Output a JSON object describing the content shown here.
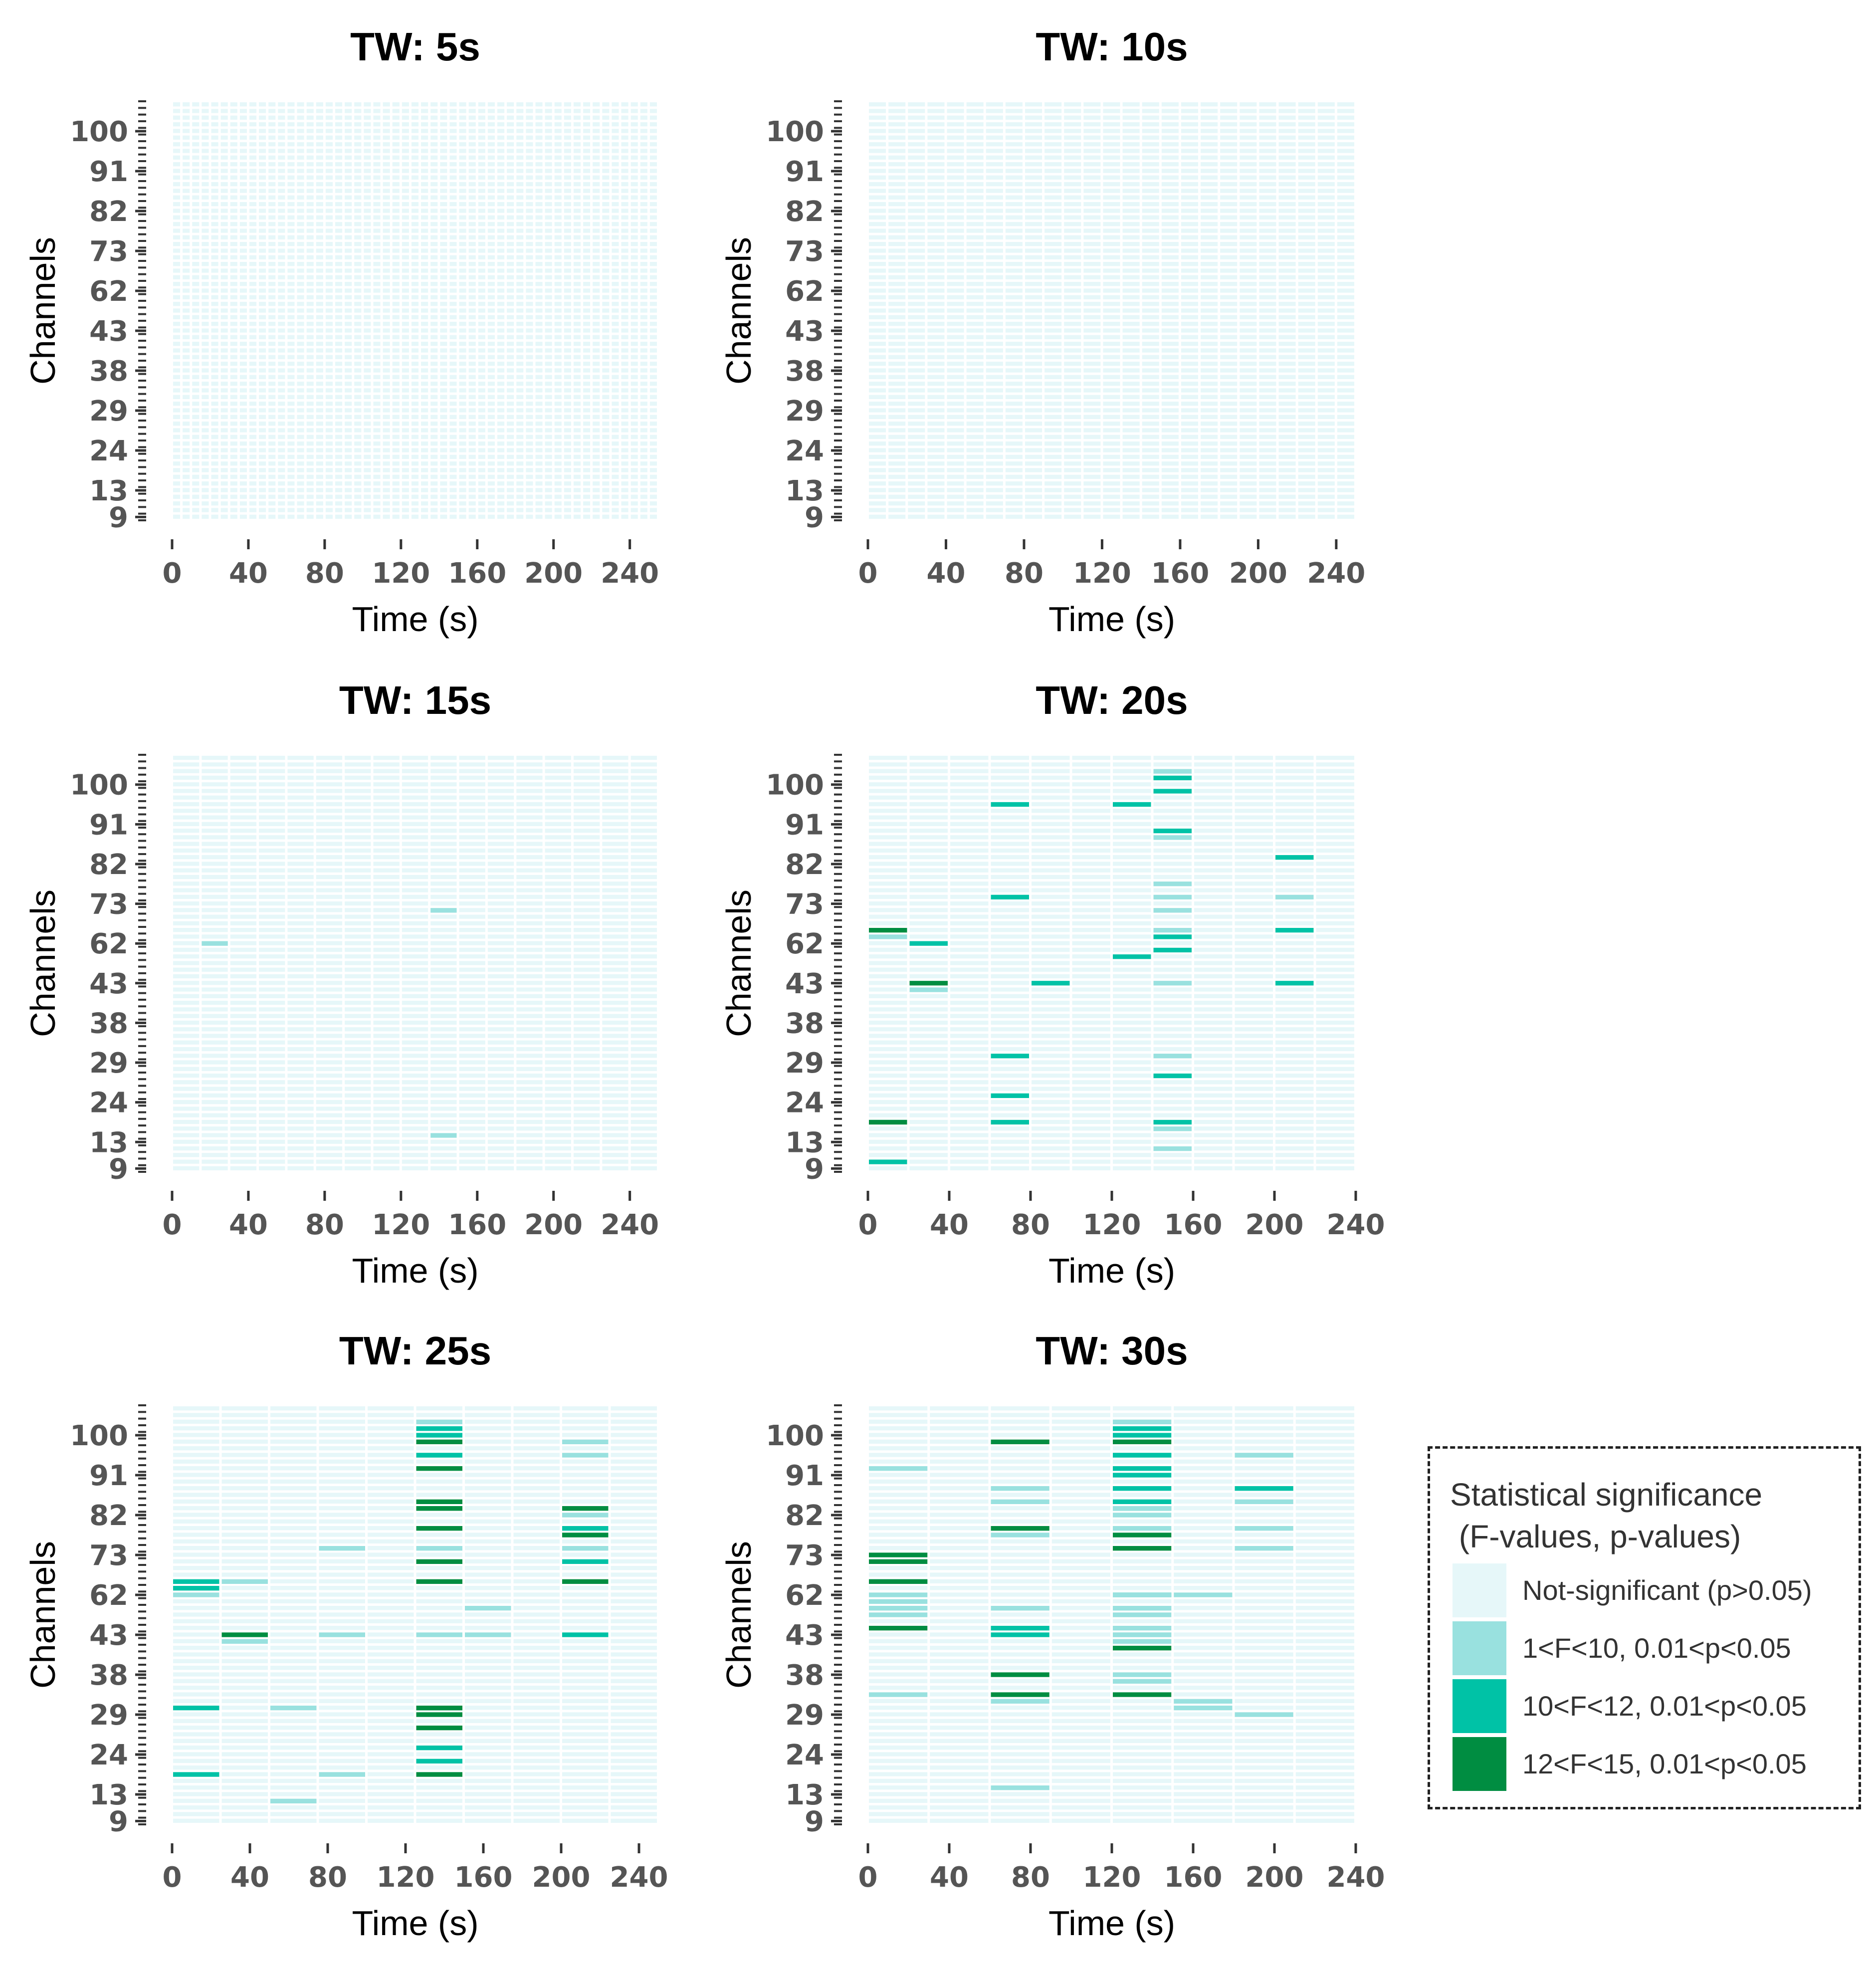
{
  "chart_data": {
    "type": "heatmap",
    "x_label": "Time (s)",
    "y_label": "Channels",
    "x_ticks": [
      0,
      40,
      80,
      120,
      160,
      200,
      240
    ],
    "y_tick_labels": [
      "9",
      "13",
      "24",
      "29",
      "38",
      "43",
      "62",
      "73",
      "82",
      "91",
      "100"
    ],
    "n_rows": 63,
    "levels": [
      "Not-significant (p>0.05)",
      "1<F<10, 0.01<p<0.05",
      "10<F<12, 0.01<p<0.05",
      "12<F<15, 0.01<p<0.05"
    ],
    "colors": [
      "#e6f7f9",
      "#99e1df",
      "#00c2a6",
      "#008d41"
    ],
    "grid_color": "#ffffff",
    "legend": {
      "title_line1": "Statistical significance",
      "title_line2": " (F-values, p-values)"
    },
    "panels": [
      {
        "title": "TW: 5s",
        "window": 5,
        "x_max": 255,
        "x_axis_max": 250,
        "cells": []
      },
      {
        "title": "TW: 10s",
        "window": 10,
        "x_max": 250,
        "x_axis_max": 250,
        "cells": []
      },
      {
        "title": "TW: 15s",
        "window": 15,
        "x_max": 255,
        "x_axis_max": 250,
        "cells": [
          {
            "t": 15,
            "ch": 62,
            "level": 1
          },
          {
            "t": 135,
            "ch": 72,
            "level": 1
          },
          {
            "t": 135,
            "ch": 15,
            "level": 1
          }
        ]
      },
      {
        "title": "TW: 20s",
        "window": 20,
        "x_max": 240,
        "x_axis_max": 240,
        "cells": [
          {
            "t": 140,
            "ch": 102,
            "level": 1
          },
          {
            "t": 140,
            "ch": 101,
            "level": 2
          },
          {
            "t": 140,
            "ch": 99,
            "level": 2
          },
          {
            "t": 60,
            "ch": 96,
            "level": 2
          },
          {
            "t": 120,
            "ch": 96,
            "level": 2
          },
          {
            "t": 140,
            "ch": 90,
            "level": 2
          },
          {
            "t": 140,
            "ch": 88,
            "level": 1
          },
          {
            "t": 200,
            "ch": 83,
            "level": 2
          },
          {
            "t": 140,
            "ch": 78,
            "level": 1
          },
          {
            "t": 60,
            "ch": 74,
            "level": 2
          },
          {
            "t": 140,
            "ch": 74,
            "level": 1
          },
          {
            "t": 200,
            "ch": 74,
            "level": 1
          },
          {
            "t": 140,
            "ch": 72,
            "level": 1
          },
          {
            "t": 0,
            "ch": 66,
            "level": 3
          },
          {
            "t": 140,
            "ch": 66,
            "level": 1
          },
          {
            "t": 200,
            "ch": 66,
            "level": 2
          },
          {
            "t": 0,
            "ch": 64,
            "level": 1
          },
          {
            "t": 140,
            "ch": 64,
            "level": 2
          },
          {
            "t": 20,
            "ch": 61,
            "level": 2
          },
          {
            "t": 140,
            "ch": 59,
            "level": 2
          },
          {
            "t": 120,
            "ch": 57,
            "level": 2
          },
          {
            "t": 20,
            "ch": 43,
            "level": 3
          },
          {
            "t": 80,
            "ch": 43,
            "level": 2
          },
          {
            "t": 140,
            "ch": 43,
            "level": 1
          },
          {
            "t": 200,
            "ch": 43,
            "level": 2
          },
          {
            "t": 20,
            "ch": 42,
            "level": 1
          },
          {
            "t": 60,
            "ch": 30,
            "level": 2
          },
          {
            "t": 140,
            "ch": 30,
            "level": 1
          },
          {
            "t": 140,
            "ch": 27,
            "level": 2
          },
          {
            "t": 60,
            "ch": 25,
            "level": 2
          },
          {
            "t": 0,
            "ch": 19,
            "level": 2
          },
          {
            "t": 0,
            "ch": 18,
            "level": 3
          },
          {
            "t": 60,
            "ch": 18,
            "level": 2
          },
          {
            "t": 140,
            "ch": 18,
            "level": 2
          },
          {
            "t": 140,
            "ch": 16,
            "level": 1
          },
          {
            "t": 140,
            "ch": 12,
            "level": 1
          },
          {
            "t": 0,
            "ch": 10,
            "level": 2
          }
        ]
      },
      {
        "title": "TW: 25s",
        "window": 25,
        "x_max": 250,
        "x_axis_max": 250,
        "cells": [
          {
            "t": 125,
            "ch": 102,
            "level": 1
          },
          {
            "t": 125,
            "ch": 101,
            "level": 2
          },
          {
            "t": 125,
            "ch": 100,
            "level": 2
          },
          {
            "t": 125,
            "ch": 99,
            "level": 3
          },
          {
            "t": 200,
            "ch": 99,
            "level": 1
          },
          {
            "t": 125,
            "ch": 96,
            "level": 2
          },
          {
            "t": 125,
            "ch": 95,
            "level": 2
          },
          {
            "t": 200,
            "ch": 95,
            "level": 1
          },
          {
            "t": 125,
            "ch": 92,
            "level": 3
          },
          {
            "t": 125,
            "ch": 85,
            "level": 3
          },
          {
            "t": 125,
            "ch": 84,
            "level": 3
          },
          {
            "t": 200,
            "ch": 84,
            "level": 3
          },
          {
            "t": 125,
            "ch": 83,
            "level": 3
          },
          {
            "t": 200,
            "ch": 82,
            "level": 1
          },
          {
            "t": 125,
            "ch": 79,
            "level": 3
          },
          {
            "t": 200,
            "ch": 79,
            "level": 2
          },
          {
            "t": 200,
            "ch": 78,
            "level": 1
          },
          {
            "t": 200,
            "ch": 77,
            "level": 3
          },
          {
            "t": 75,
            "ch": 74,
            "level": 1
          },
          {
            "t": 125,
            "ch": 74,
            "level": 1
          },
          {
            "t": 200,
            "ch": 74,
            "level": 1
          },
          {
            "t": 125,
            "ch": 72,
            "level": 3
          },
          {
            "t": 200,
            "ch": 72,
            "level": 2
          },
          {
            "t": 0,
            "ch": 65,
            "level": 2
          },
          {
            "t": 25,
            "ch": 65,
            "level": 1
          },
          {
            "t": 125,
            "ch": 65,
            "level": 3
          },
          {
            "t": 200,
            "ch": 65,
            "level": 3
          },
          {
            "t": 0,
            "ch": 64,
            "level": 2
          },
          {
            "t": 0,
            "ch": 62,
            "level": 1
          },
          {
            "t": 150,
            "ch": 55,
            "level": 1
          },
          {
            "t": 25,
            "ch": 43,
            "level": 3
          },
          {
            "t": 75,
            "ch": 43,
            "level": 1
          },
          {
            "t": 125,
            "ch": 43,
            "level": 1
          },
          {
            "t": 150,
            "ch": 43,
            "level": 1
          },
          {
            "t": 200,
            "ch": 43,
            "level": 2
          },
          {
            "t": 25,
            "ch": 42,
            "level": 1
          },
          {
            "t": 0,
            "ch": 31,
            "level": 2
          },
          {
            "t": 50,
            "ch": 31,
            "level": 1
          },
          {
            "t": 125,
            "ch": 31,
            "level": 3
          },
          {
            "t": 125,
            "ch": 30,
            "level": 3
          },
          {
            "t": 125,
            "ch": 29,
            "level": 3
          },
          {
            "t": 125,
            "ch": 27,
            "level": 3
          },
          {
            "t": 125,
            "ch": 25,
            "level": 2
          },
          {
            "t": 125,
            "ch": 22,
            "level": 2
          },
          {
            "t": 0,
            "ch": 19,
            "level": 2
          },
          {
            "t": 75,
            "ch": 19,
            "level": 1
          },
          {
            "t": 125,
            "ch": 19,
            "level": 3
          },
          {
            "t": 50,
            "ch": 12,
            "level": 1
          }
        ]
      },
      {
        "title": "TW: 30s",
        "window": 30,
        "x_max": 240,
        "x_axis_max": 240,
        "cells": [
          {
            "t": 120,
            "ch": 102,
            "level": 1
          },
          {
            "t": 120,
            "ch": 101,
            "level": 2
          },
          {
            "t": 120,
            "ch": 100,
            "level": 2
          },
          {
            "t": 60,
            "ch": 99,
            "level": 3
          },
          {
            "t": 120,
            "ch": 99,
            "level": 3
          },
          {
            "t": 120,
            "ch": 96,
            "level": 2
          },
          {
            "t": 180,
            "ch": 96,
            "level": 1
          },
          {
            "t": 120,
            "ch": 95,
            "level": 2
          },
          {
            "t": 180,
            "ch": 95,
            "level": 1
          },
          {
            "t": 0,
            "ch": 93,
            "level": 1
          },
          {
            "t": 120,
            "ch": 92,
            "level": 2
          },
          {
            "t": 120,
            "ch": 91,
            "level": 2
          },
          {
            "t": 60,
            "ch": 88,
            "level": 1
          },
          {
            "t": 120,
            "ch": 88,
            "level": 2
          },
          {
            "t": 180,
            "ch": 88,
            "level": 2
          },
          {
            "t": 60,
            "ch": 85,
            "level": 1
          },
          {
            "t": 120,
            "ch": 85,
            "level": 2
          },
          {
            "t": 180,
            "ch": 85,
            "level": 1
          },
          {
            "t": 120,
            "ch": 84,
            "level": 2
          },
          {
            "t": 120,
            "ch": 83,
            "level": 1
          },
          {
            "t": 120,
            "ch": 82,
            "level": 1
          },
          {
            "t": 60,
            "ch": 79,
            "level": 3
          },
          {
            "t": 120,
            "ch": 79,
            "level": 1
          },
          {
            "t": 180,
            "ch": 79,
            "level": 1
          },
          {
            "t": 60,
            "ch": 78,
            "level": 1
          },
          {
            "t": 120,
            "ch": 78,
            "level": 1
          },
          {
            "t": 120,
            "ch": 77,
            "level": 3
          },
          {
            "t": 120,
            "ch": 74,
            "level": 3
          },
          {
            "t": 180,
            "ch": 74,
            "level": 1
          },
          {
            "t": 0,
            "ch": 73,
            "level": 3
          },
          {
            "t": 0,
            "ch": 72,
            "level": 3
          },
          {
            "t": 0,
            "ch": 66,
            "level": 2
          },
          {
            "t": 0,
            "ch": 65,
            "level": 3
          },
          {
            "t": 120,
            "ch": 62,
            "level": 2
          },
          {
            "t": 150,
            "ch": 62,
            "level": 1
          },
          {
            "t": 0,
            "ch": 61,
            "level": 1
          },
          {
            "t": 120,
            "ch": 61,
            "level": 1
          },
          {
            "t": 0,
            "ch": 59,
            "level": 1
          },
          {
            "t": 0,
            "ch": 57,
            "level": 1
          },
          {
            "t": 60,
            "ch": 57,
            "level": 1
          },
          {
            "t": 120,
            "ch": 57,
            "level": 1
          },
          {
            "t": 0,
            "ch": 55,
            "level": 1
          },
          {
            "t": 60,
            "ch": 55,
            "level": 1
          },
          {
            "t": 120,
            "ch": 55,
            "level": 1
          },
          {
            "t": 0,
            "ch": 52,
            "level": 1
          },
          {
            "t": 120,
            "ch": 52,
            "level": 1
          },
          {
            "t": 0,
            "ch": 45,
            "level": 3
          },
          {
            "t": 60,
            "ch": 45,
            "level": 2
          },
          {
            "t": 120,
            "ch": 45,
            "level": 1
          },
          {
            "t": 60,
            "ch": 44,
            "level": 2
          },
          {
            "t": 120,
            "ch": 44,
            "level": 1
          },
          {
            "t": 120,
            "ch": 43,
            "level": 1
          },
          {
            "t": 120,
            "ch": 42,
            "level": 1
          },
          {
            "t": 120,
            "ch": 41,
            "level": 3
          },
          {
            "t": 60,
            "ch": 38,
            "level": 3
          },
          {
            "t": 120,
            "ch": 38,
            "level": 1
          },
          {
            "t": 120,
            "ch": 37,
            "level": 1
          },
          {
            "t": 0,
            "ch": 33,
            "level": 1
          },
          {
            "t": 60,
            "ch": 33,
            "level": 3
          },
          {
            "t": 120,
            "ch": 33,
            "level": 3
          },
          {
            "t": 60,
            "ch": 32,
            "level": 1
          },
          {
            "t": 150,
            "ch": 32,
            "level": 1
          },
          {
            "t": 150,
            "ch": 30,
            "level": 1
          },
          {
            "t": 180,
            "ch": 29,
            "level": 1
          },
          {
            "t": 60,
            "ch": 14,
            "level": 1
          }
        ]
      }
    ]
  }
}
